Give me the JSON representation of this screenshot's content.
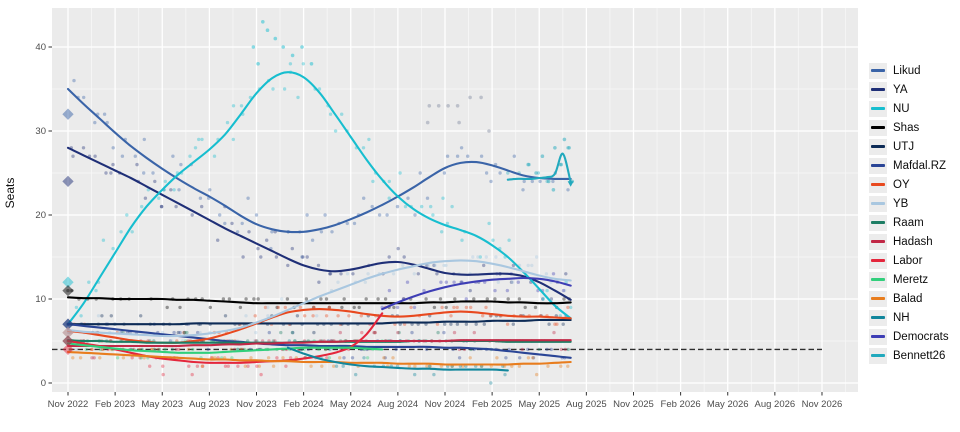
{
  "chart_data": {
    "type": "scatter",
    "title": "",
    "ylabel": "Seats",
    "xlabel": "",
    "grid": "on",
    "legend_position": "right",
    "panel_bg": "#ebebeb",
    "ylim": [
      -1,
      44.6
    ],
    "y_ticks": [
      0,
      10,
      20,
      30,
      40
    ],
    "y_minor": [
      5,
      15,
      25,
      35
    ],
    "x_ticks": {
      "months": [
        0,
        3,
        6,
        9,
        12,
        15,
        18,
        21,
        24,
        27,
        30,
        33,
        36,
        39,
        42,
        45,
        48
      ],
      "labels": [
        "Nov 2022",
        "Feb 2023",
        "May 2023",
        "Aug 2023",
        "Nov 2023",
        "Feb 2024",
        "May 2024",
        "Aug 2024",
        "Nov 2024",
        "Feb 2025",
        "May 2025",
        "Aug 2025",
        "Nov 2025",
        "Feb 2026",
        "May 2026",
        "Aug 2026",
        "Nov 2026"
      ]
    },
    "threshold": {
      "seats": 4,
      "color": "#2e2e2e",
      "style": "dashed",
      "end_month": 48
    },
    "election_markers": {
      "month": 0,
      "results": {
        "Likud": 32,
        "YA": 24,
        "NU": 12,
        "Shas": 11,
        "UTJ": 7,
        "Mafdal.RZ": 7,
        "OY": 6,
        "YB": 6,
        "Raam": 5,
        "Hadash": 5,
        "Labor": 4
      }
    },
    "series": [
      {
        "name": "Likud",
        "color": "#3a64a8",
        "start": 0,
        "step": 1,
        "jitter": 2.2,
        "density": 2.6,
        "values": [
          35,
          33.2,
          31.5,
          29.8,
          28.2,
          26.8,
          25.5,
          24.3,
          23.2,
          22.2,
          21.1,
          19.9,
          18.9,
          18.3,
          18,
          18,
          18.3,
          18.8,
          19.5,
          20.3,
          21.2,
          22.2,
          23.3,
          24.5,
          25.6,
          26.2,
          26.3,
          25.9,
          25.3,
          24.7,
          24.4,
          24.3,
          24.3
        ]
      },
      {
        "name": "YA",
        "color": "#1f2f77",
        "start": 0,
        "step": 1,
        "jitter": 2.2,
        "density": 2.6,
        "values": [
          28,
          27.1,
          26.2,
          25.3,
          24.4,
          23.4,
          22.4,
          21.4,
          20.4,
          19.4,
          18.4,
          17.5,
          16.6,
          15.7,
          14.8,
          14,
          13.5,
          13.3,
          13.5,
          13.9,
          14.3,
          14.4,
          14.1,
          13.6,
          13.1,
          12.9,
          12.9,
          13,
          13,
          12.7,
          12,
          11,
          9.9
        ]
      },
      {
        "name": "NU",
        "color": "#17becf",
        "start": 0,
        "step": 1,
        "jitter": 2.6,
        "density": 3,
        "values": [
          7,
          9.5,
          12.5,
          15.5,
          18.5,
          21,
          23,
          24.8,
          26.3,
          27.8,
          29.6,
          32,
          34.5,
          36.3,
          37,
          36.4,
          34.6,
          32,
          29.3,
          26.6,
          24.2,
          22.2,
          20.7,
          19.6,
          18.8,
          18.2,
          17.5,
          16.4,
          15,
          13.2,
          11.2,
          9.2,
          7.7
        ]
      },
      {
        "name": "Shas",
        "color": "#000000",
        "start": 0,
        "step": 1,
        "jitter": 0.9,
        "density": 2.2,
        "values": [
          10.2,
          10.1,
          10.1,
          10,
          10,
          10,
          10,
          9.9,
          9.9,
          9.8,
          9.7,
          9.6,
          9.5,
          9.5,
          9.5,
          9.5,
          9.5,
          9.5,
          9.5,
          9.5,
          9.5,
          9.5,
          9.5,
          9.6,
          9.6,
          9.7,
          9.7,
          9.7,
          9.6,
          9.6,
          9.5,
          9.5,
          9.6
        ]
      },
      {
        "name": "UTJ",
        "color": "#0d2b56",
        "start": 0,
        "step": 1,
        "jitter": 0.8,
        "density": 2.2,
        "values": [
          7,
          7,
          7,
          7,
          7,
          7,
          7,
          7,
          7.1,
          7.1,
          7.1,
          7.1,
          7.1,
          7.1,
          7.1,
          7.1,
          7.1,
          7.1,
          7.1,
          7.1,
          7.1,
          7.2,
          7.2,
          7.2,
          7.3,
          7.3,
          7.3,
          7.4,
          7.4,
          7.4,
          7.5,
          7.5,
          7.5
        ]
      },
      {
        "name": "Mafdal.RZ",
        "color": "#2a4596",
        "start": 0,
        "step": 1,
        "jitter": 1.2,
        "density": 2.2,
        "values": [
          7,
          6.8,
          6.6,
          6.4,
          6.2,
          6,
          5.8,
          5.6,
          5.4,
          5.2,
          5,
          4.9,
          4.7,
          4.6,
          4.5,
          4.5,
          4.4,
          4.4,
          4.4,
          4.3,
          4.3,
          4.3,
          4.3,
          4.3,
          4.2,
          4.2,
          4.1,
          4,
          3.8,
          3.6,
          3.4,
          3.2,
          3
        ]
      },
      {
        "name": "OY",
        "color": "#e8491f",
        "start": 0,
        "step": 1,
        "jitter": 1.4,
        "density": 2.4,
        "values": [
          6.2,
          6,
          5.7,
          5.4,
          5.1,
          4.9,
          4.8,
          4.8,
          5,
          5.3,
          5.8,
          6.4,
          7.1,
          7.8,
          8.4,
          8.7,
          8.8,
          8.7,
          8.5,
          8.2,
          8,
          7.9,
          8,
          8.2,
          8.4,
          8.5,
          8.4,
          8.2,
          8,
          7.9,
          7.9,
          7.8,
          7.7
        ]
      },
      {
        "name": "YB",
        "color": "#a9c7e0",
        "start": 0,
        "step": 1,
        "jitter": 1.6,
        "density": 2.4,
        "values": [
          6.3,
          6.1,
          6,
          5.9,
          5.8,
          5.7,
          5.6,
          5.6,
          5.7,
          5.9,
          6.2,
          6.6,
          7.2,
          7.9,
          8.7,
          9.5,
          10.3,
          11,
          11.7,
          12.4,
          13,
          13.5,
          13.9,
          14.3,
          14.5,
          14.6,
          14.5,
          14.2,
          13.8,
          13.3,
          12.8,
          12.4,
          12.2
        ]
      },
      {
        "name": "Raam",
        "color": "#1d7d64",
        "start": 0,
        "step": 1,
        "jitter": 0.9,
        "density": 2.2,
        "values": [
          5.1,
          5,
          5,
          4.9,
          4.9,
          4.8,
          4.8,
          4.8,
          4.8,
          4.8,
          4.8,
          4.8,
          4.8,
          4.8,
          4.8,
          4.9,
          4.9,
          4.9,
          4.9,
          4.9,
          4.9,
          4.9,
          5,
          5,
          5,
          5,
          5,
          5,
          4.9,
          4.9,
          4.9,
          4.9,
          4.9
        ]
      },
      {
        "name": "Hadash",
        "color": "#c12846",
        "start": 0,
        "step": 1,
        "jitter": 0.9,
        "density": 2.2,
        "values": [
          4.4,
          4.4,
          4.4,
          4.4,
          4.4,
          4.4,
          4.4,
          4.4,
          4.5,
          4.5,
          4.6,
          4.6,
          4.7,
          4.7,
          4.8,
          4.8,
          4.9,
          4.9,
          5,
          5,
          5,
          5,
          5,
          5,
          5,
          5.1,
          5.1,
          5.1,
          5.1,
          5.1,
          5.1,
          5.1,
          5.1
        ]
      },
      {
        "name": "Labor",
        "color": "#e4263c",
        "start": 0,
        "step": 1,
        "jitter": 1.2,
        "density": 2.4,
        "values": [
          5,
          4.7,
          4.4,
          4,
          3.6,
          3.2,
          2.9,
          2.7,
          2.5,
          2.4,
          2.4,
          2.4,
          2.5,
          2.6,
          2.7,
          2.9,
          3.2,
          3.6,
          4.3,
          5.8,
          8.3
        ]
      },
      {
        "name": "Meretz",
        "color": "#32cf7c",
        "start": 0,
        "step": 1,
        "jitter": 1.0,
        "density": 2.2,
        "values": [
          4.7,
          4.5,
          4.3,
          4.1,
          3.9,
          3.8,
          3.7,
          3.6,
          3.6,
          3.6,
          3.7,
          3.8,
          3.9,
          4,
          4.1,
          4.2,
          4.2,
          4.2,
          4.2,
          4.1,
          4
        ]
      },
      {
        "name": "Balad",
        "color": "#e87d1e",
        "start": 0,
        "step": 1,
        "jitter": 1.0,
        "density": 2.2,
        "values": [
          3.7,
          3.6,
          3.5,
          3.4,
          3.3,
          3.2,
          3.1,
          3,
          2.9,
          2.8,
          2.8,
          2.7,
          2.7,
          2.6,
          2.6,
          2.5,
          2.5,
          2.5,
          2.4,
          2.4,
          2.4,
          2.3,
          2.3,
          2.3,
          2.2,
          2.2,
          2.2,
          2.2,
          2.2,
          2.3,
          2.3,
          2.4,
          2.5
        ]
      },
      {
        "name": "NH",
        "color": "#11869c",
        "start": 14,
        "step": 1,
        "jitter": 1.0,
        "density": 2.0,
        "values": [
          4.2,
          3.5,
          2.9,
          2.5,
          2.2,
          2,
          1.9,
          1.8,
          1.7,
          1.7,
          1.6,
          1.6,
          1.6,
          1.6,
          1.5
        ]
      },
      {
        "name": "Democrats",
        "color": "#3e3eb5",
        "start": 20,
        "step": 1,
        "jitter": 1.3,
        "density": 2.4,
        "values": [
          8.8,
          9.6,
          10.3,
          10.9,
          11.4,
          11.8,
          12.1,
          12.3,
          12.4,
          12.5,
          12.4,
          12.1,
          11.6
        ]
      },
      {
        "name": "Bennett26",
        "color": "#21a9bd",
        "start": 28,
        "step": 0.5,
        "jitter": 1.8,
        "density": 1.6,
        "arrow_end": true,
        "values": [
          24.2,
          24.3,
          24.3,
          24.3,
          24.4,
          24.5,
          24.9,
          27.3,
          23.9
        ]
      }
    ],
    "extra_points": [
      {
        "name": "NU-peak-polls",
        "color": "#17becf",
        "pts": [
          [
            11.8,
            40
          ],
          [
            12.4,
            43
          ],
          [
            12.7,
            42
          ],
          [
            13.2,
            41
          ],
          [
            13.7,
            40
          ],
          [
            14.3,
            39
          ],
          [
            12.1,
            38
          ],
          [
            14.9,
            40
          ],
          [
            15.5,
            38
          ]
        ]
      },
      {
        "name": "high-gray-polls",
        "color": "#8d96aa",
        "pts": [
          [
            23,
            33
          ],
          [
            23.6,
            33
          ],
          [
            24.2,
            33
          ],
          [
            24.8,
            33
          ],
          [
            25.6,
            34
          ],
          [
            26.3,
            34
          ],
          [
            22.9,
            31
          ],
          [
            24.9,
            31
          ],
          [
            26.8,
            30
          ]
        ]
      },
      {
        "name": "Bennett26-late-polls",
        "color": "#21a9bd",
        "pts": [
          [
            29.3,
            26
          ],
          [
            29.8,
            25
          ],
          [
            30.2,
            27
          ],
          [
            30.6,
            24
          ],
          [
            31,
            28
          ],
          [
            31.4,
            26
          ],
          [
            31.9,
            28
          ],
          [
            32.1,
            24
          ],
          [
            30.9,
            23
          ],
          [
            31.6,
            29
          ]
        ]
      }
    ],
    "legend": [
      "Likud",
      "YA",
      "NU",
      "Shas",
      "UTJ",
      "Mafdal.RZ",
      "OY",
      "YB",
      "Raam",
      "Hadash",
      "Labor",
      "Meretz",
      "Balad",
      "NH",
      "Democrats",
      "Bennett26"
    ]
  }
}
